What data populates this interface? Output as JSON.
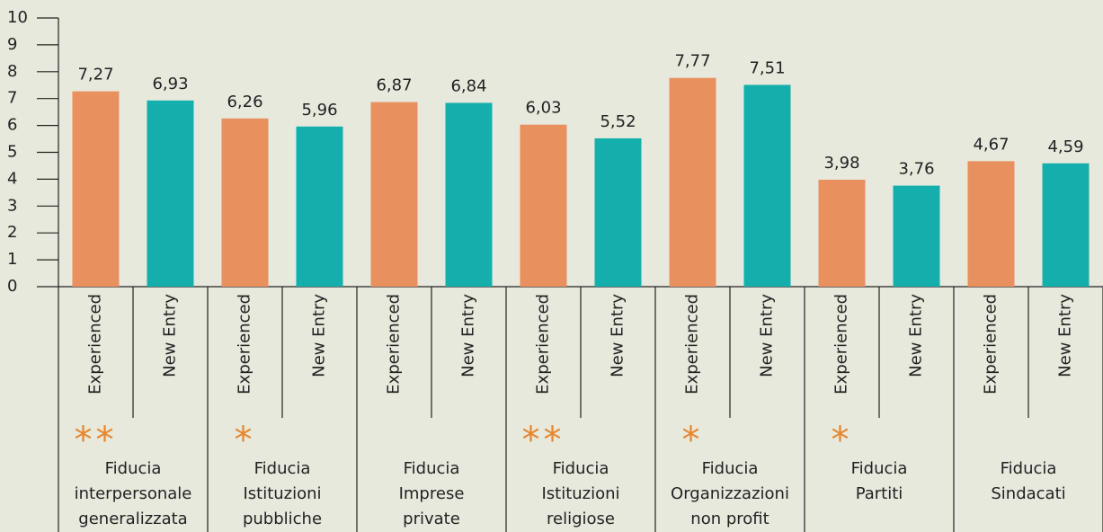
{
  "chart_data": {
    "type": "bar",
    "groups": [
      [
        "Fiducia",
        "interpersonale",
        "generalizzata"
      ],
      [
        "Fiducia",
        "Istituzioni",
        "pubbliche"
      ],
      [
        "Fiducia",
        "Imprese",
        "private"
      ],
      [
        "Fiducia",
        "Istituzioni",
        "religiose"
      ],
      [
        "Fiducia",
        "Organizzazioni",
        "non profit"
      ],
      [
        "Fiducia",
        "Partiti"
      ],
      [
        "Fiducia",
        "Sindacati"
      ]
    ],
    "annotations": [
      "**",
      "*",
      null,
      "**",
      "*",
      "*",
      null
    ],
    "series": [
      {
        "name": "Experienced",
        "color": "#e8905e",
        "values": [
          7.27,
          6.26,
          6.87,
          6.03,
          7.77,
          3.98,
          4.67
        ],
        "value_labels": [
          "7,27",
          "6,26",
          "6,87",
          "6,03",
          "7,77",
          "3,98",
          "4,67"
        ]
      },
      {
        "name": "New Entry",
        "color": "#14afad",
        "values": [
          6.93,
          5.96,
          6.84,
          5.52,
          7.51,
          3.76,
          4.59
        ],
        "value_labels": [
          "6,93",
          "5,96",
          "6,84",
          "5,52",
          "7,51",
          "3,76",
          "4,59"
        ]
      }
    ],
    "ylim": [
      0,
      10
    ],
    "yticks": [
      0,
      1,
      2,
      3,
      4,
      5,
      6,
      7,
      8,
      9,
      10
    ],
    "annotation_color": "#e8862e"
  }
}
